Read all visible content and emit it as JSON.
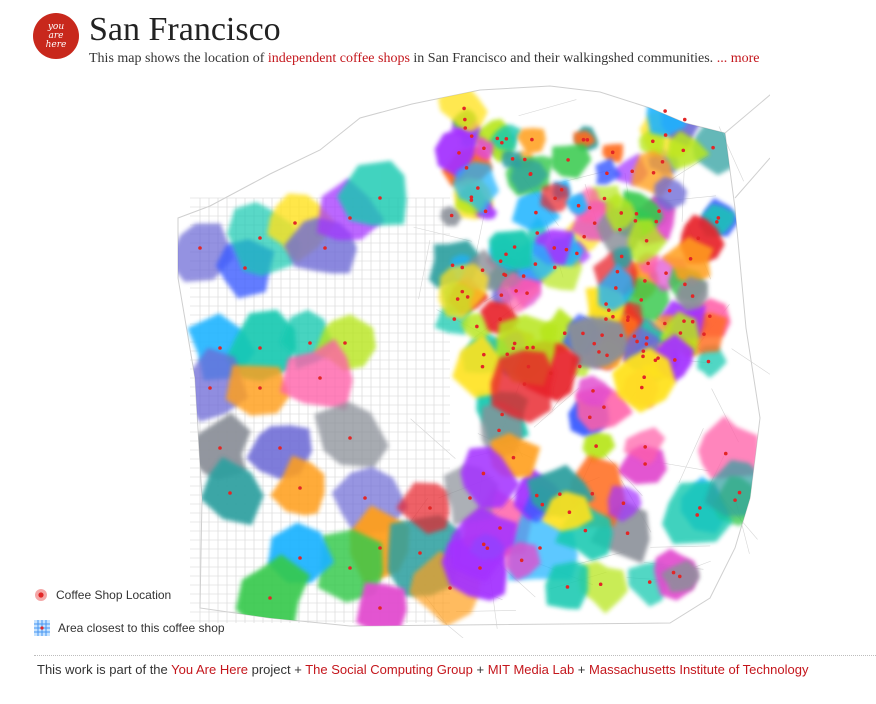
{
  "logo": {
    "text": "you\nare\nhere",
    "color": "#c8281c"
  },
  "header": {
    "title": "San Francisco",
    "subtitle_pre": "This map shows the location of ",
    "subtitle_link": "independent coffee shops",
    "subtitle_post": " in San Francisco and their walkingshed communities. ",
    "more_link": "... more"
  },
  "legend": {
    "location_label": "Coffee Shop Location",
    "area_label": "Area closest to this coffee shop"
  },
  "footer": {
    "pre": "This work is part of the ",
    "you_are_here": "You Are Here",
    "project": " project + ",
    "social": "The Social Computing Group",
    "plus1": " + ",
    "mit_media": "MIT Media Lab",
    "plus2": " + ",
    "mit": "Massachusetts Institute of Technology"
  },
  "colors": {
    "accent": "#c4161c",
    "palette": [
      "#e8232a",
      "#ff5fa8",
      "#a431ff",
      "#3a5cff",
      "#1fb3ff",
      "#17c9b0",
      "#35c94b",
      "#b7e61c",
      "#ffe21f",
      "#ff9f1c",
      "#ff6a1f",
      "#8a8f98",
      "#6d6bd6",
      "#e24ccf",
      "#2fa0a0"
    ]
  }
}
